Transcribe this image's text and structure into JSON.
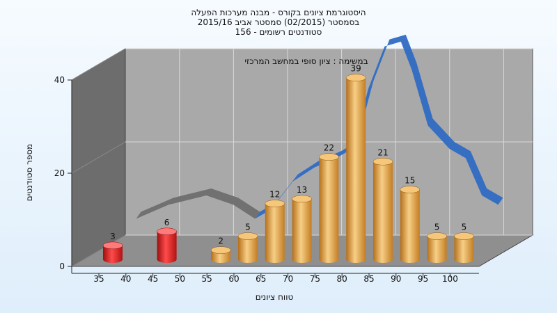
{
  "chart_data": {
    "type": "bar",
    "title_lines": [
      "היסטוגרמת ציונים בקורס - מבנה מערכות הפעלה",
      "בסמסטר  (02/2015)  סמסטר אביב 2015/16",
      "סטודנטים רשומים - 156"
    ],
    "annotation": "במשימה : ציון סופי במחשב המרכזי",
    "xlabel": "טווח ציונים",
    "ylabel": "מספר סטודנטים",
    "ylim": [
      0,
      40
    ],
    "yticks": [
      0,
      20,
      40
    ],
    "xticks": [
      35,
      40,
      45,
      50,
      55,
      60,
      65,
      70,
      75,
      80,
      85,
      90,
      95,
      100
    ],
    "grid": true,
    "legend": "none",
    "colors": {
      "fail": "#e01515",
      "pass": "#e8a23c",
      "curve_fail": "#6e6e6e",
      "curve_pass": "#2f6cc3",
      "wall": "#a9a9a9",
      "side_wall": "#6d6d6d",
      "floor": "#8f8f8f"
    },
    "bars": [
      {
        "x": 35,
        "value": 3,
        "label": "3",
        "group": "fail"
      },
      {
        "x": 45,
        "value": 6,
        "label": "6",
        "group": "fail"
      },
      {
        "x": 55,
        "value": 2,
        "label": "2",
        "group": "pass"
      },
      {
        "x": 60,
        "value": 5,
        "label": "5",
        "group": "pass"
      },
      {
        "x": 65,
        "value": 12,
        "label": "12",
        "group": "pass"
      },
      {
        "x": 70,
        "value": 13,
        "label": "13",
        "group": "pass"
      },
      {
        "x": 75,
        "value": 22,
        "label": "22",
        "group": "pass"
      },
      {
        "x": 80,
        "value": 39,
        "label": "39",
        "group": "pass"
      },
      {
        "x": 85,
        "value": 21,
        "label": "21",
        "group": "pass"
      },
      {
        "x": 90,
        "value": 15,
        "label": "15",
        "group": "pass"
      },
      {
        "x": 95,
        "value": 5,
        "label": "5",
        "group": "pass"
      },
      {
        "x": 100,
        "value": 5,
        "label": "5",
        "group": "pass"
      }
    ],
    "curve": [
      {
        "x": 37,
        "y": 5
      },
      {
        "x": 43,
        "y": 8
      },
      {
        "x": 50,
        "y": 10
      },
      {
        "x": 55,
        "y": 8
      },
      {
        "x": 59,
        "y": 5
      },
      {
        "x": 62,
        "y": 7
      },
      {
        "x": 66,
        "y": 13
      },
      {
        "x": 70,
        "y": 16
      },
      {
        "x": 74,
        "y": 18
      },
      {
        "x": 77,
        "y": 20
      },
      {
        "x": 80,
        "y": 33
      },
      {
        "x": 83,
        "y": 42
      },
      {
        "x": 86,
        "y": 43
      },
      {
        "x": 88,
        "y": 37
      },
      {
        "x": 91,
        "y": 25
      },
      {
        "x": 95,
        "y": 20
      },
      {
        "x": 98,
        "y": 18
      },
      {
        "x": 101,
        "y": 10
      },
      {
        "x": 104,
        "y": 8
      }
    ],
    "curve_split_x": 60
  }
}
